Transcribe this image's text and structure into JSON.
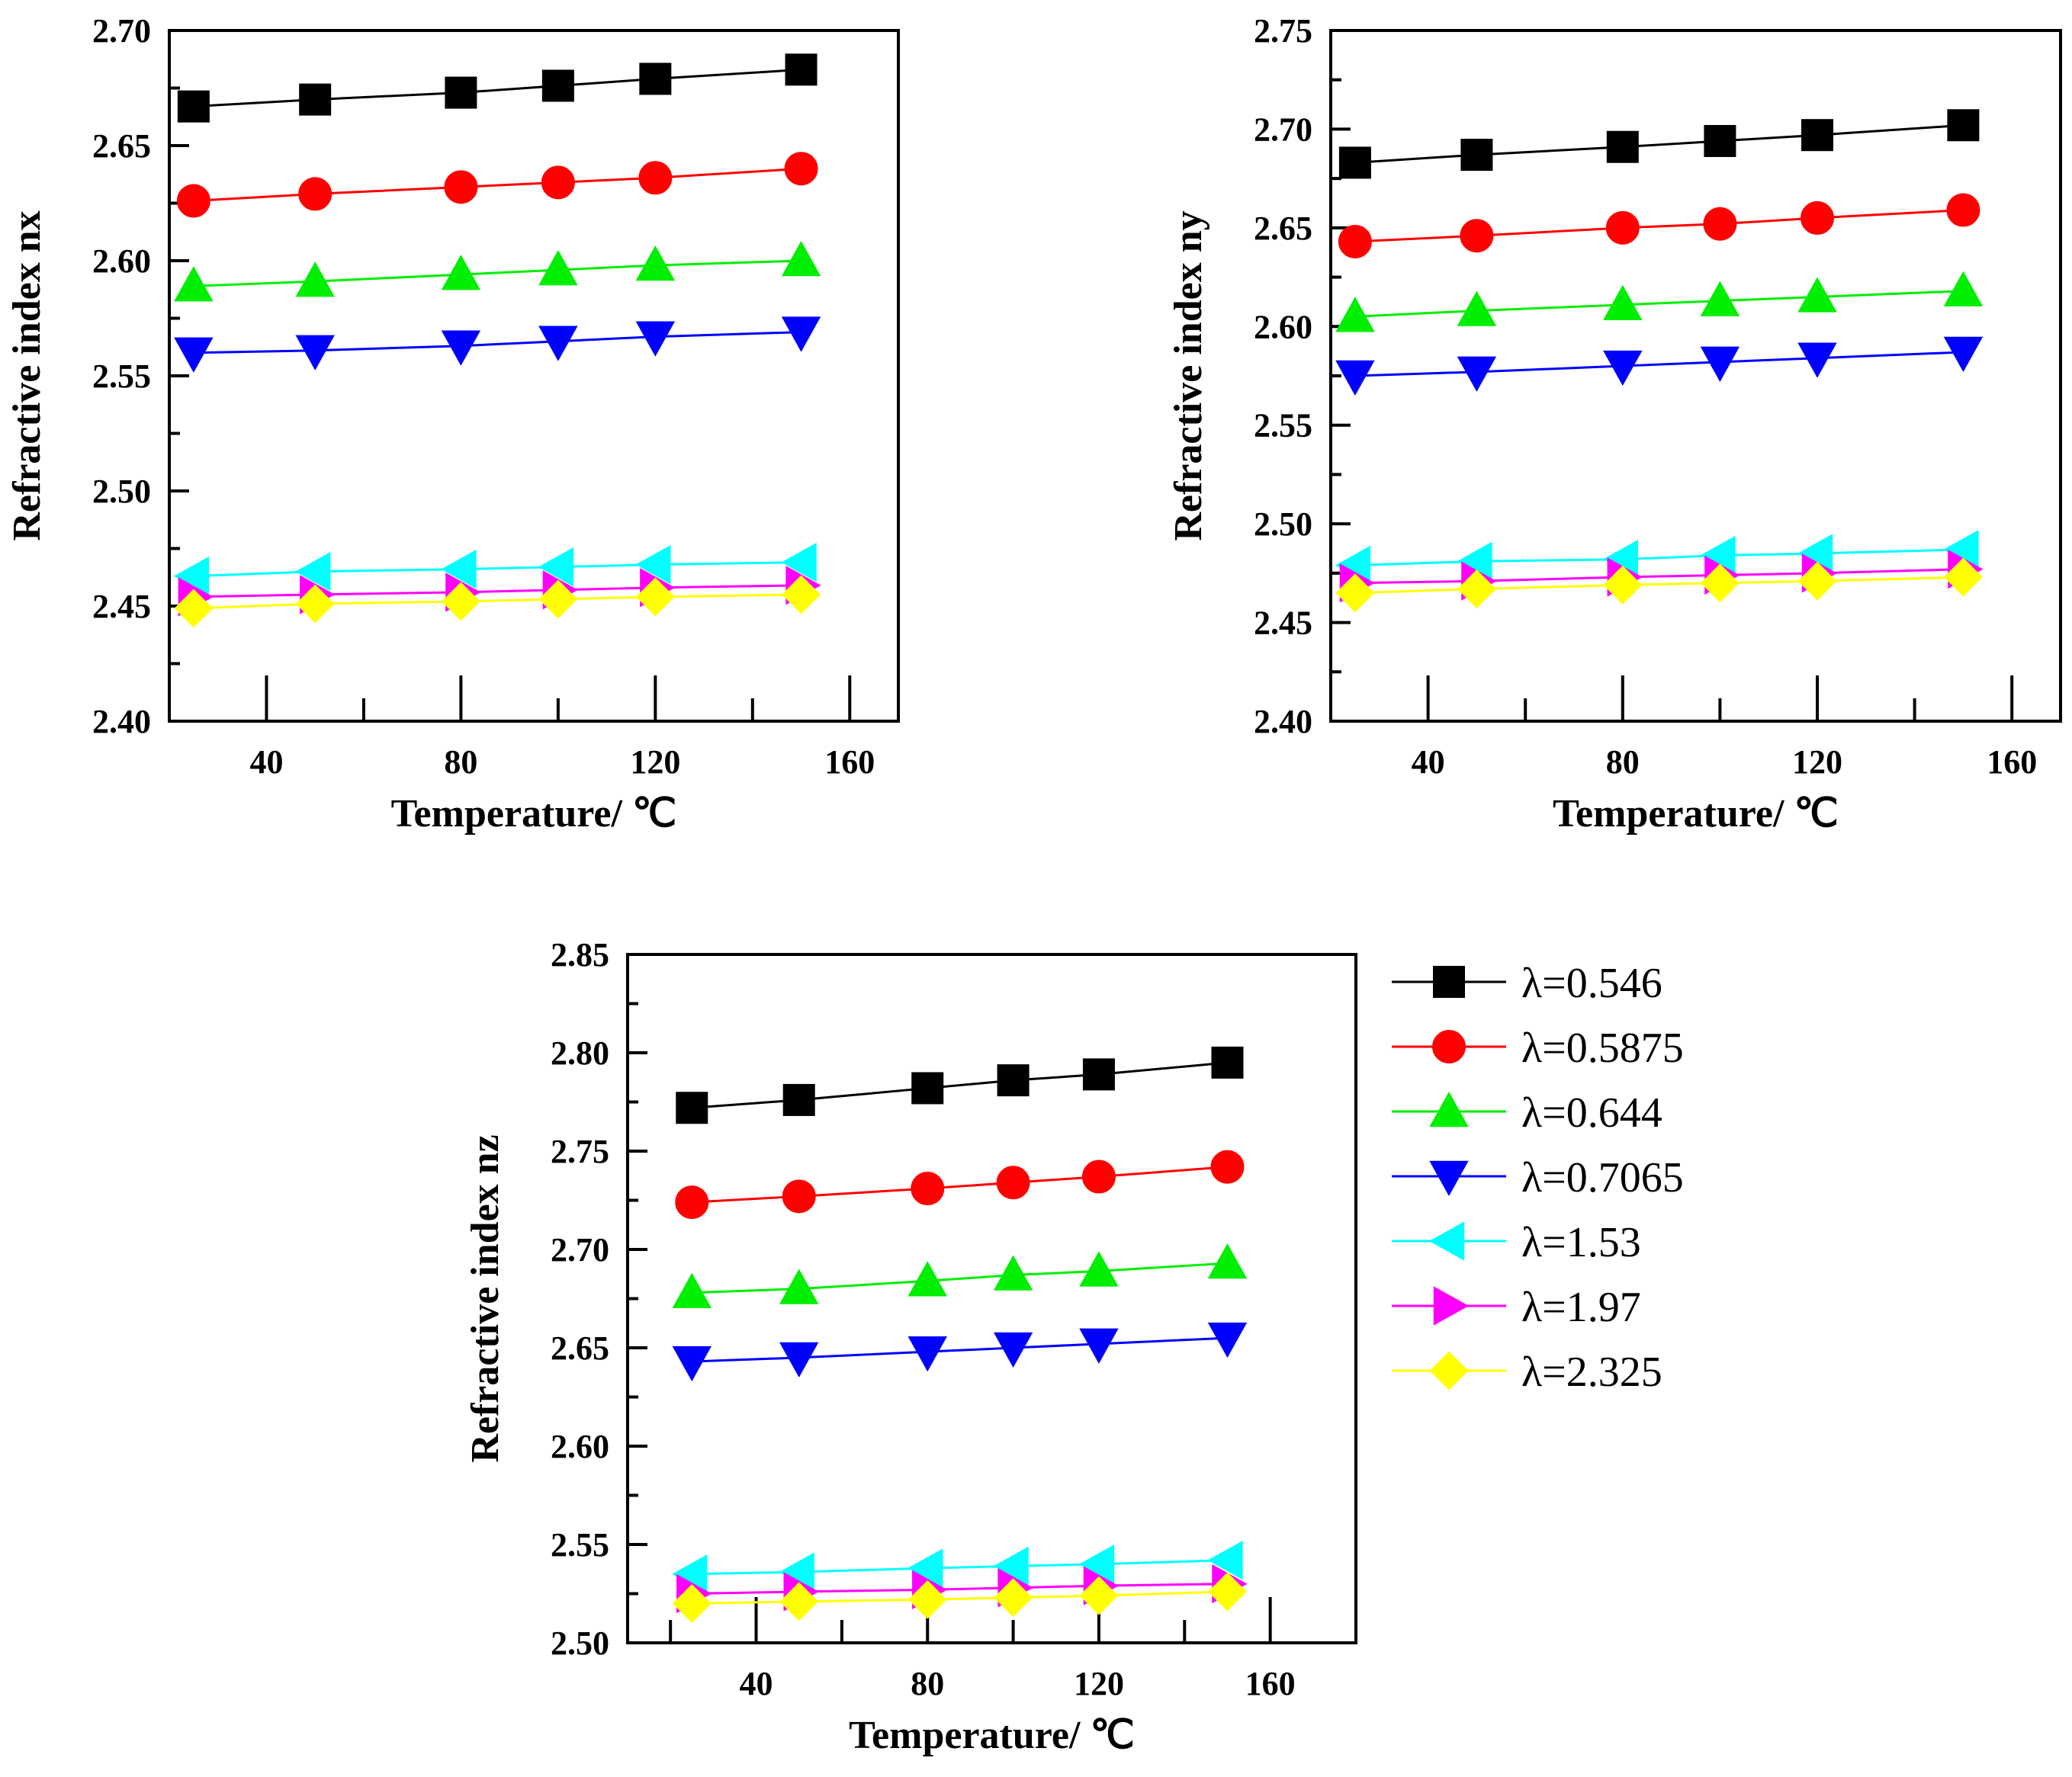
{
  "chart_data": [
    {
      "type": "line",
      "id": "nx",
      "ylabel": "Refractive index nx",
      "xlabel": "Temperature/ ℃",
      "ylim": [
        2.4,
        2.7
      ],
      "yticks": [
        "2.40",
        "2.45",
        "2.50",
        "2.55",
        "2.60",
        "2.65",
        "2.70"
      ],
      "xlim": [
        20,
        170
      ],
      "xticks": [
        "40",
        "80",
        "120",
        "160"
      ],
      "x": [
        25,
        50,
        80,
        100,
        120,
        150
      ],
      "series": [
        {
          "name": "λ=0.546",
          "values": [
            2.667,
            2.67,
            2.673,
            2.676,
            2.679,
            2.683
          ]
        },
        {
          "name": "λ=0.5875",
          "values": [
            2.626,
            2.629,
            2.632,
            2.634,
            2.636,
            2.64
          ]
        },
        {
          "name": "λ=0.644",
          "values": [
            2.589,
            2.591,
            2.594,
            2.596,
            2.598,
            2.6
          ]
        },
        {
          "name": "λ=0.7065",
          "values": [
            2.56,
            2.561,
            2.563,
            2.565,
            2.567,
            2.569
          ]
        },
        {
          "name": "λ=1.53",
          "values": [
            2.463,
            2.465,
            2.466,
            2.467,
            2.468,
            2.469
          ]
        },
        {
          "name": "λ=1.97",
          "values": [
            2.454,
            2.455,
            2.456,
            2.457,
            2.458,
            2.459
          ]
        },
        {
          "name": "λ=2.325",
          "values": [
            2.449,
            2.451,
            2.452,
            2.453,
            2.454,
            2.455
          ]
        }
      ]
    },
    {
      "type": "line",
      "id": "ny",
      "ylabel": "Refractive index ny",
      "xlabel": "Temperature/ ℃",
      "ylim": [
        2.4,
        2.75
      ],
      "yticks": [
        "2.40",
        "2.45",
        "2.50",
        "2.55",
        "2.60",
        "2.65",
        "2.70",
        "2.75"
      ],
      "xlim": [
        20,
        170
      ],
      "xticks": [
        "40",
        "80",
        "120",
        "160"
      ],
      "x": [
        25,
        50,
        80,
        100,
        120,
        150
      ],
      "series": [
        {
          "name": "λ=0.546",
          "values": [
            2.683,
            2.687,
            2.691,
            2.694,
            2.697,
            2.702
          ]
        },
        {
          "name": "λ=0.5875",
          "values": [
            2.643,
            2.646,
            2.65,
            2.652,
            2.655,
            2.659
          ]
        },
        {
          "name": "λ=0.644",
          "values": [
            2.605,
            2.608,
            2.611,
            2.613,
            2.615,
            2.618
          ]
        },
        {
          "name": "λ=0.7065",
          "values": [
            2.575,
            2.577,
            2.58,
            2.582,
            2.584,
            2.587
          ]
        },
        {
          "name": "λ=1.53",
          "values": [
            2.479,
            2.481,
            2.482,
            2.484,
            2.485,
            2.487
          ]
        },
        {
          "name": "λ=1.97",
          "values": [
            2.47,
            2.471,
            2.473,
            2.474,
            2.475,
            2.477
          ]
        },
        {
          "name": "λ=2.325",
          "values": [
            2.465,
            2.467,
            2.469,
            2.47,
            2.471,
            2.473
          ]
        }
      ]
    },
    {
      "type": "line",
      "id": "nz",
      "ylabel": "Refractive index nz",
      "xlabel": "Temperature/ ℃",
      "ylim": [
        2.5,
        2.85
      ],
      "yticks": [
        "2.50",
        "2.55",
        "2.60",
        "2.65",
        "2.70",
        "2.75",
        "2.80",
        "2.85"
      ],
      "xlim": [
        10,
        180
      ],
      "xticks": [
        "40",
        "80",
        "120",
        "160"
      ],
      "x": [
        25,
        50,
        80,
        100,
        120,
        150
      ],
      "series": [
        {
          "name": "λ=0.546",
          "values": [
            2.772,
            2.776,
            2.782,
            2.786,
            2.789,
            2.795
          ]
        },
        {
          "name": "λ=0.5875",
          "values": [
            2.724,
            2.727,
            2.731,
            2.734,
            2.737,
            2.742
          ]
        },
        {
          "name": "λ=0.644",
          "values": [
            2.678,
            2.68,
            2.684,
            2.687,
            2.689,
            2.693
          ]
        },
        {
          "name": "λ=0.7065",
          "values": [
            2.643,
            2.645,
            2.648,
            2.65,
            2.652,
            2.655
          ]
        },
        {
          "name": "λ=1.53",
          "values": [
            2.535,
            2.536,
            2.538,
            2.539,
            2.54,
            2.542
          ]
        },
        {
          "name": "λ=1.97",
          "values": [
            2.525,
            2.526,
            2.527,
            2.528,
            2.529,
            2.53
          ]
        },
        {
          "name": "λ=2.325",
          "values": [
            2.52,
            2.521,
            2.522,
            2.523,
            2.524,
            2.526
          ]
        }
      ]
    }
  ],
  "legend": {
    "position": "right of bottom chart",
    "entries": [
      {
        "label": "λ=0.546",
        "color": "#000000",
        "marker": "square"
      },
      {
        "label": "λ=0.5875",
        "color": "#ff0000",
        "marker": "circle"
      },
      {
        "label": "λ=0.644",
        "color": "#00ee00",
        "marker": "triangle-up"
      },
      {
        "label": "λ=0.7065",
        "color": "#0000ff",
        "marker": "triangle-down"
      },
      {
        "label": "λ=1.53",
        "color": "#00ffff",
        "marker": "triangle-left"
      },
      {
        "label": "λ=1.97",
        "color": "#ff00ff",
        "marker": "triangle-right"
      },
      {
        "label": "λ=2.325",
        "color": "#ffff00",
        "marker": "diamond"
      }
    ]
  }
}
